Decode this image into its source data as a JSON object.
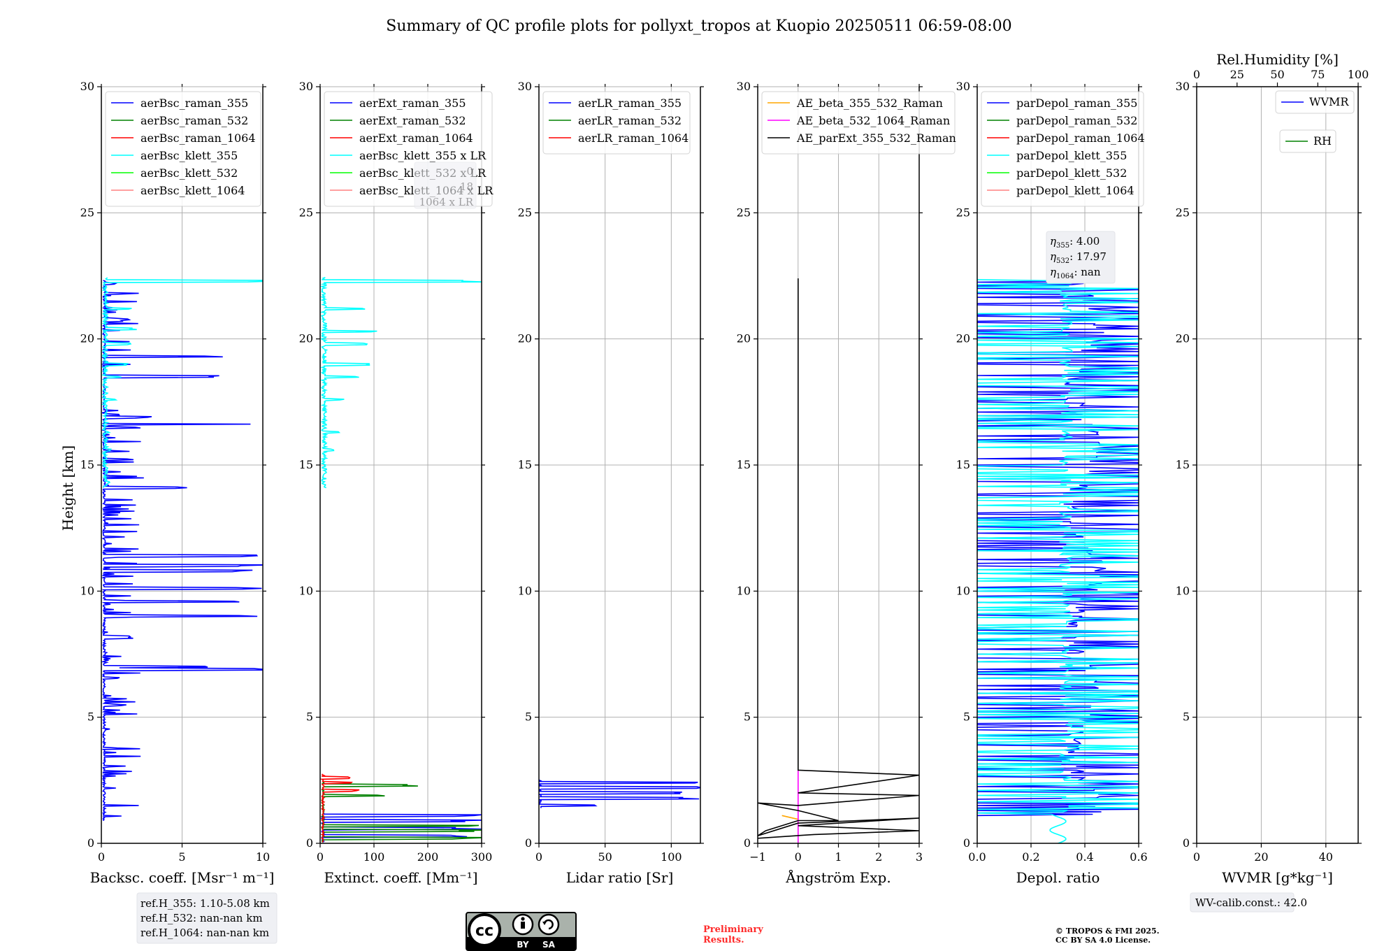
{
  "title": "Summary of QC profile plots for pollyxt_tropos at Kuopio 20250511 06:59-08:00",
  "ylabel": "Height [km]",
  "panel_ylim": [
    0,
    30
  ],
  "panel_yticks": [
    0,
    5,
    10,
    15,
    20,
    25,
    30
  ],
  "chart_data": [
    {
      "type": "line",
      "xlabel": "Backsc. coeff. [Msr⁻¹ m⁻¹]",
      "xlim": [
        0,
        10
      ],
      "xticks": [
        0,
        5,
        10
      ],
      "ylim": [
        0,
        30
      ],
      "grid": true,
      "legend_position": "top-left",
      "series": [
        {
          "name": "aerBsc_raman_355",
          "color": "#0000ff",
          "kind": "raman_bsc",
          "altitudes_km": [
            6.9,
            7.0,
            8.2,
            9.0,
            9.6,
            10.1,
            10.8,
            11.0,
            11.4,
            14.1,
            14.5,
            16.6,
            16.9,
            18.5,
            19.3,
            20.8,
            22.2
          ],
          "peak_values": [
            10,
            8,
            2,
            10,
            10,
            10,
            10,
            10,
            10,
            5.7,
            2.7,
            10,
            3,
            8,
            7.5,
            2,
            1
          ]
        },
        {
          "name": "aerBsc_raman_532",
          "color": "#008000"
        },
        {
          "name": "aerBsc_raman_1064",
          "color": "#ff0000"
        },
        {
          "name": "aerBsc_klett_355",
          "color": "#00ffff",
          "kind": "klett_bsc",
          "altitudes_km": [
            14.3,
            15.6,
            16.3,
            17.6,
            18.5,
            19.0,
            19.8,
            20.4,
            21.2,
            22.3
          ],
          "peak_values": [
            0.5,
            0.6,
            0.5,
            0.9,
            1.2,
            1.6,
            1.8,
            2.2,
            1.8,
            10
          ]
        },
        {
          "name": "aerBsc_klett_532",
          "color": "#00ff00"
        },
        {
          "name": "aerBsc_klett_1064",
          "color": "#ff8080"
        }
      ]
    },
    {
      "type": "line",
      "xlabel": "Extinct. coeff. [Mm⁻¹]",
      "xlim": [
        0,
        300
      ],
      "xticks": [
        0,
        100,
        200,
        300
      ],
      "ylim": [
        0,
        30
      ],
      "grid": true,
      "legend_position": "top-left",
      "series": [
        {
          "name": "aerExt_raman_355",
          "color": "#0000ff",
          "kind": "near_range",
          "altitudes_km": [
            0.3,
            0.6,
            0.9,
            1.1
          ],
          "peak_values": [
            300,
            300,
            300,
            300
          ]
        },
        {
          "name": "aerExt_raman_532",
          "color": "#008000",
          "kind": "near_range",
          "altitudes_km": [
            0.2,
            0.5,
            0.7,
            1.9,
            2.3
          ],
          "peak_values": [
            300,
            300,
            300,
            120,
            175
          ]
        },
        {
          "name": "aerExt_raman_1064",
          "color": "#ff0000",
          "kind": "near_range",
          "altitudes_km": [
            2.1,
            2.4,
            2.6
          ],
          "peak_values": [
            70,
            60,
            55
          ]
        },
        {
          "name": "aerBsc_klett_355 x LR",
          "color": "#00ffff",
          "kind": "klett_ext",
          "altitudes_km": [
            14.2,
            15.6,
            16.3,
            17.6,
            18.5,
            19.0,
            19.8,
            20.3,
            21.2,
            22.3
          ],
          "peak_values": [
            10,
            25,
            40,
            45,
            70,
            90,
            100,
            110,
            90,
            300
          ]
        },
        {
          "name": "aerBsc_klett_532 x LR",
          "color": "#00ff00"
        },
        {
          "name": "aerBsc_klett_1064 x LR",
          "color": "#ff8080"
        }
      ]
    },
    {
      "type": "line",
      "xlabel": "Lidar ratio [Sr]",
      "xlim": [
        0,
        122
      ],
      "xticks": [
        0,
        50,
        100
      ],
      "ylim": [
        0,
        30
      ],
      "grid": true,
      "legend_position": "top-left",
      "series": [
        {
          "name": "aerLR_raman_355",
          "color": "#0000ff",
          "kind": "lr",
          "altitudes_km": [
            1.5,
            1.8,
            2.0,
            2.2,
            2.4
          ],
          "peak_values": [
            47,
            122,
            122,
            122,
            122
          ]
        },
        {
          "name": "aerLR_raman_532",
          "color": "#008000"
        },
        {
          "name": "aerLR_raman_1064",
          "color": "#ff0000"
        }
      ]
    },
    {
      "type": "line",
      "xlabel": "Ångström Exp.",
      "xlim": [
        -1,
        3
      ],
      "xticks": [
        -1,
        0,
        1,
        2,
        3
      ],
      "ylim": [
        0,
        30
      ],
      "grid": true,
      "legend_position": "top-left",
      "series": [
        {
          "name": "AE_beta_355_532_Raman",
          "color": "#ffa500",
          "kind": "ae",
          "x": [
            0,
            0,
            -0.4
          ],
          "y": [
            1.1,
            0.95,
            1.1
          ]
        },
        {
          "name": "AE_beta_532_1064_Raman",
          "color": "#ff00ff",
          "kind": "ae",
          "x": [
            0,
            0
          ],
          "y": [
            0,
            2.9
          ]
        },
        {
          "name": "AE_parExt_355_532_Raman",
          "color": "#000000",
          "kind": "ae",
          "x": [
            0,
            0,
            3,
            0,
            3,
            0,
            -1,
            0,
            1,
            0,
            -0.8,
            -1,
            0,
            3,
            0,
            3,
            0.4,
            -1
          ],
          "y": [
            22.4,
            2.9,
            2.7,
            2.0,
            1.9,
            1.5,
            1.6,
            1.3,
            0.9,
            0.9,
            0.5,
            0.3,
            0.8,
            1.0,
            0.7,
            0.5,
            0.35,
            0.2
          ]
        }
      ]
    },
    {
      "type": "line",
      "xlabel": "Depol. ratio",
      "xlim": [
        0,
        0.6
      ],
      "xticks": [
        0.0,
        0.2,
        0.4,
        0.6
      ],
      "ylim": [
        0,
        30
      ],
      "grid": true,
      "legend_position": "top-left",
      "series": [
        {
          "name": "parDepol_raman_355",
          "color": "#0000ff",
          "kind": "depol",
          "ylim_profile": [
            1.1,
            22.4
          ]
        },
        {
          "name": "parDepol_raman_532",
          "color": "#008000"
        },
        {
          "name": "parDepol_raman_1064",
          "color": "#ff0000"
        },
        {
          "name": "parDepol_klett_355",
          "color": "#00ffff",
          "kind": "depol_klett",
          "ylim_profile": [
            0,
            22.4
          ]
        },
        {
          "name": "parDepol_klett_532",
          "color": "#00ff00"
        },
        {
          "name": "parDepol_klett_1064",
          "color": "#ff8080"
        }
      ]
    },
    {
      "type": "line",
      "xlabel": "WVMR [g*kg⁻¹]",
      "xlim": [
        0,
        50
      ],
      "xticks": [
        0,
        20,
        40
      ],
      "x2label": "Rel.Humidity [%]",
      "x2lim": [
        0,
        100
      ],
      "x2ticks": [
        0,
        25,
        50,
        75,
        100
      ],
      "ylim": [
        0,
        30
      ],
      "grid": true,
      "legend_position": "top-right",
      "series": [
        {
          "name": "WVMR",
          "color": "#0000ff"
        },
        {
          "name": "RH",
          "color": "#008000"
        }
      ]
    }
  ],
  "info_boxes": {
    "ref_h": [
      "ref.H_355: 1.10-5.08 km",
      "ref.H_532: nan-nan km",
      "ref.H_1064: nan-nan km"
    ],
    "eta": [
      {
        "sym": "η",
        "sub": "355",
        "value": ": 4.00"
      },
      {
        "sym": "η",
        "sub": "532",
        "value": ": 17.97"
      },
      {
        "sym": "η",
        "sub": "1064",
        "value": ": nan"
      }
    ],
    "wv_calib": "WV-calib.const.: 42.0",
    "hidden_box_text": [
      "0",
      "18",
      "1064 x LR"
    ]
  },
  "footer": {
    "preliminary": [
      "Preliminary",
      "Results."
    ],
    "copyright": [
      "© TROPOS & FMI 2025.",
      "CC BY SA 4.0 License."
    ],
    "cc_badge": {
      "by": "BY",
      "sa": "SA",
      "cc": "cc",
      "icon": "creative-commons-icon"
    }
  },
  "colors": {
    "raman_355": "#0000ff",
    "raman_532": "#008000",
    "raman_1064": "#ff0000",
    "klett_355": "#00ffff",
    "klett_532": "#00ff00",
    "klett_1064": "#ff8080",
    "ae_orange": "#ffa500",
    "ae_magenta": "#ff00ff",
    "prelim_red": "#ff2a2a"
  }
}
